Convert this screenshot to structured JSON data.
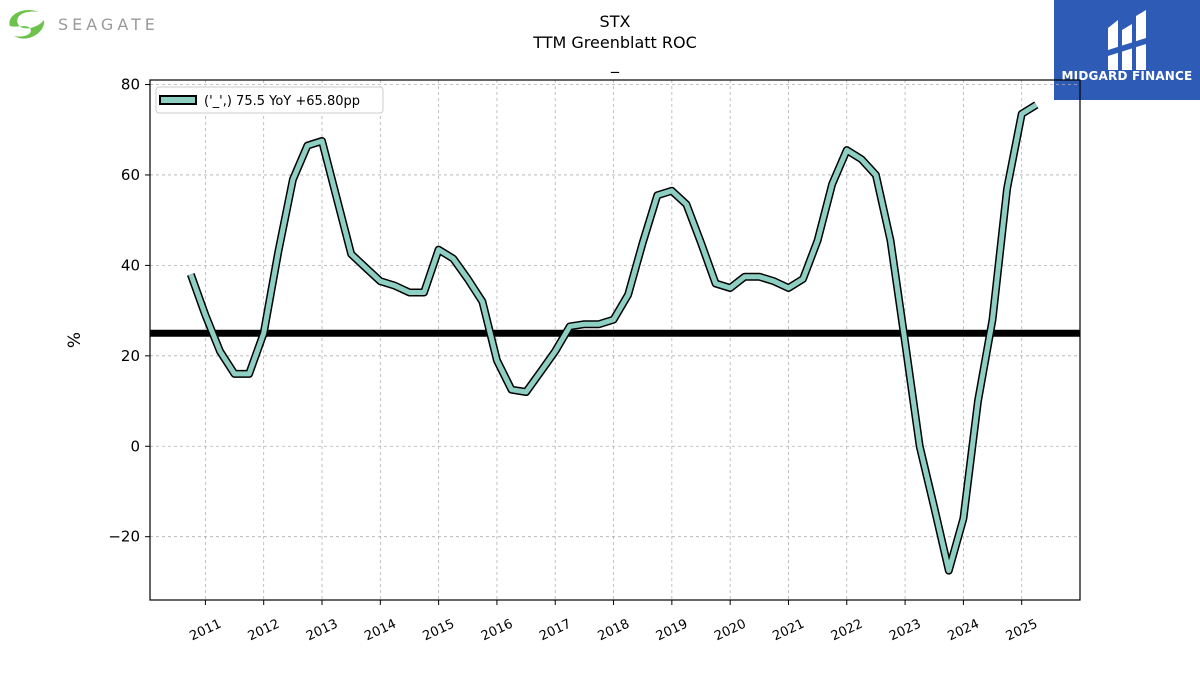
{
  "header": {
    "ticker": "STX",
    "metric": "TTM Greenblatt ROC",
    "subtitle": "_"
  },
  "logos": {
    "left_text": "SEAGATE",
    "right_text": "MIDGARD FINANCE"
  },
  "colors": {
    "line_fill": "#8ecfc4",
    "line_edge": "#000000",
    "reference_line": "#000000",
    "grid": "#b0b0b0",
    "seagate_green": "#6cc24a",
    "midgard_blue": "#2d5bb5"
  },
  "chart_data": {
    "type": "line",
    "title": "STX\nTTM Greenblatt ROC\n_",
    "ylabel": "%",
    "xlabel": "",
    "ylim": [
      -34,
      81
    ],
    "xlim": [
      2010.05,
      2026.0
    ],
    "yticks": [
      -20,
      0,
      20,
      40,
      60,
      80
    ],
    "ytick_labels": [
      "−20",
      "0",
      "20",
      "40",
      "60",
      "80"
    ],
    "xticks": [
      2011,
      2012,
      2013,
      2014,
      2015,
      2016,
      2017,
      2018,
      2019,
      2020,
      2021,
      2022,
      2023,
      2024,
      2025
    ],
    "xtick_labels": [
      "2011",
      "2012",
      "2013",
      "2014",
      "2015",
      "2016",
      "2017",
      "2018",
      "2019",
      "2020",
      "2021",
      "2022",
      "2023",
      "2024",
      "2025"
    ],
    "grid": true,
    "legend_position": "top-left",
    "reference_line": 25,
    "series": [
      {
        "name": "('_',) 75.5 YoY +65.80pp",
        "x": [
          2010.75,
          2011.0,
          2011.25,
          2011.5,
          2011.75,
          2012.0,
          2012.25,
          2012.5,
          2012.75,
          2013.0,
          2013.25,
          2013.5,
          2013.75,
          2014.0,
          2014.25,
          2014.5,
          2014.75,
          2015.0,
          2015.25,
          2015.5,
          2015.75,
          2016.0,
          2016.25,
          2016.5,
          2016.75,
          2017.0,
          2017.25,
          2017.5,
          2017.75,
          2018.0,
          2018.25,
          2018.5,
          2018.75,
          2019.0,
          2019.25,
          2019.5,
          2019.75,
          2020.0,
          2020.25,
          2020.5,
          2020.75,
          2021.0,
          2021.25,
          2021.5,
          2021.75,
          2022.0,
          2022.25,
          2022.5,
          2022.75,
          2023.0,
          2023.25,
          2023.5,
          2023.75,
          2024.0,
          2024.25,
          2024.5,
          2024.75,
          2025.0,
          2025.25
        ],
        "y": [
          38,
          29,
          21,
          16,
          16,
          25,
          43,
          59,
          66.5,
          67.5,
          55,
          42.5,
          39.5,
          36.5,
          35.5,
          34,
          34,
          43.5,
          41.5,
          37,
          32,
          19,
          12.5,
          12,
          16.5,
          21,
          26.5,
          27,
          27,
          28,
          33.5,
          45,
          55.5,
          56.5,
          53.5,
          45,
          36,
          35,
          37.5,
          37.5,
          36.5,
          35,
          37,
          45.5,
          58,
          65.5,
          63.5,
          60,
          45.5,
          23,
          0,
          -13.5,
          -27.5,
          -16,
          10,
          28,
          57,
          73.5,
          75.5
        ]
      }
    ]
  }
}
